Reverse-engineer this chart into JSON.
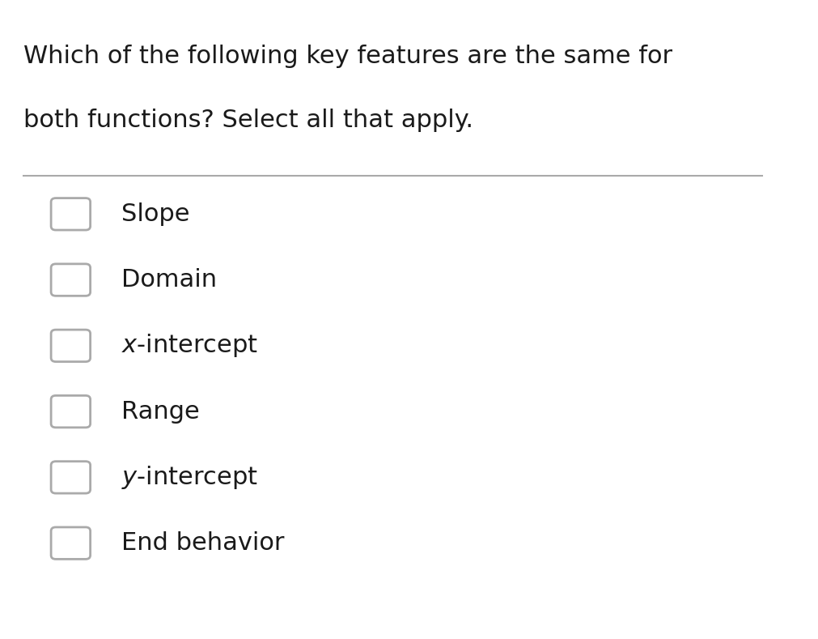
{
  "title_line1": "Which of the following key features are the same for",
  "title_line2": "both functions? Select all that apply.",
  "options": [
    "Slope",
    "Domain",
    "$x$-intercept",
    "Range",
    "$y$-intercept",
    "End behavior"
  ],
  "background_color": "#ffffff",
  "text_color": "#1a1a1a",
  "title_fontsize": 22,
  "option_fontsize": 22,
  "checkbox_color": "#aaaaaa",
  "divider_color": "#aaaaaa",
  "checkbox_linewidth": 2.0
}
